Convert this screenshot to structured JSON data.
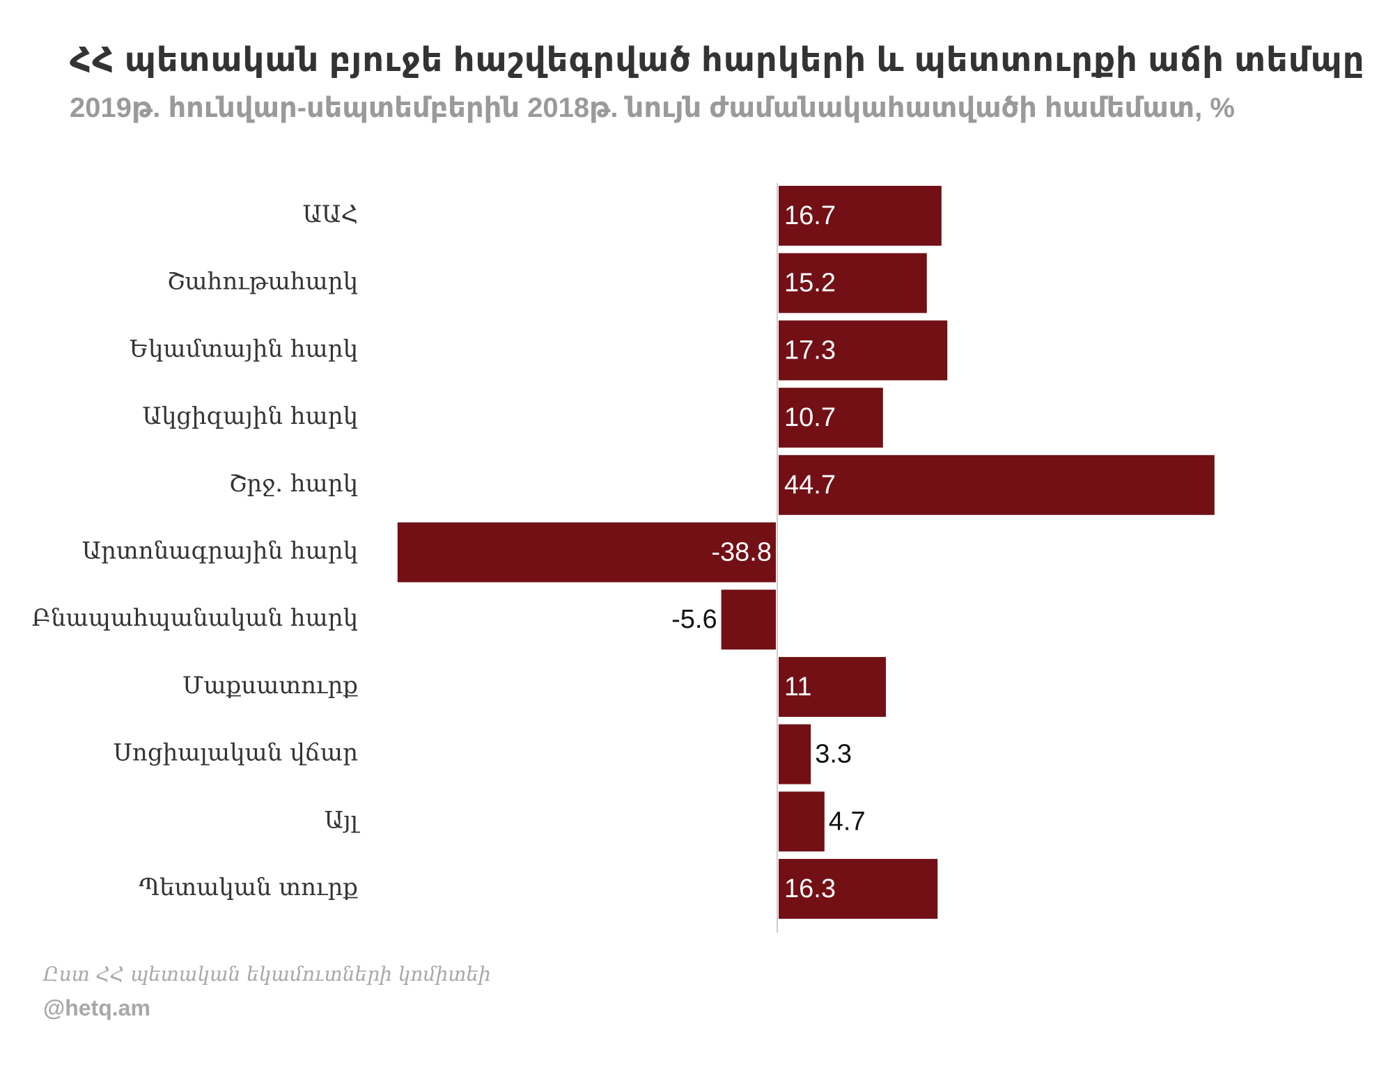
{
  "chart_data": {
    "type": "bar",
    "orientation": "horizontal",
    "title": "ՀՀ պետական բյուջե հաշվեգրված հարկերի և պետտուրքի աճի տեմպը",
    "subtitle": "2019թ. հունվար-սեպտեմբերին 2018թ. նույն ժամանակահատվածի համեմատ, %",
    "categories": [
      "ԱԱՀ",
      "Շահութահարկ",
      "Եկամտային հարկ",
      "Ակցիզային հարկ",
      "Շրջ. հարկ",
      "Արտոնագրային հարկ",
      "Բնապահպանական հարկ",
      "Մաքսատուրք",
      "Սոցիալական վճար",
      "Այլ",
      "Պետական տուրք"
    ],
    "values": [
      16.7,
      15.2,
      17.3,
      10.7,
      44.7,
      -38.8,
      -5.6,
      11,
      3.3,
      4.7,
      16.3
    ],
    "value_labels": [
      "16.7",
      "15.2",
      "17.3",
      "10.7",
      "44.7",
      "-38.8",
      "-5.6",
      "11",
      "3.3",
      "4.7",
      "16.3"
    ],
    "xlim": [
      -38.8,
      44.7
    ],
    "xlabel": "",
    "ylabel": "",
    "grid": false,
    "legend": "none"
  },
  "colors": {
    "bar": "#721016",
    "title": "#333333",
    "subtitle": "#9a9a9a",
    "category_label": "#333333",
    "value_label_inside": "#ffffff",
    "value_label_outside": "#111111",
    "zero_line": "#cccccc",
    "footer": "#a8a8a8"
  },
  "footer": {
    "source": "Ըստ ՀՀ պետական եկամուտների կոմիտեի",
    "handle": "@hetq.am"
  }
}
